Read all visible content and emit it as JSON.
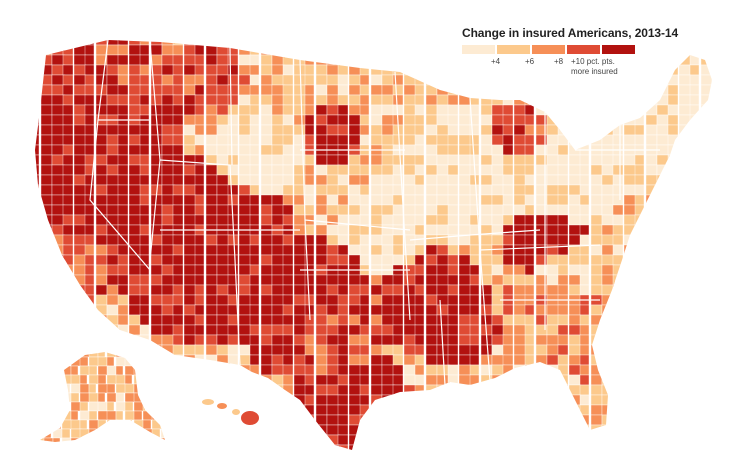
{
  "map": {
    "title": "Change in insured Americans, 2013-14",
    "legend": {
      "colors": [
        "#fdebd3",
        "#fcc98c",
        "#f68f57",
        "#df4b34",
        "#b2120f"
      ],
      "labels": [
        "+4",
        "+6",
        "+8",
        "+10 pct. pts."
      ],
      "note": "more insured"
    },
    "background_color": "#ffffff",
    "border_color": "#ffffff"
  }
}
